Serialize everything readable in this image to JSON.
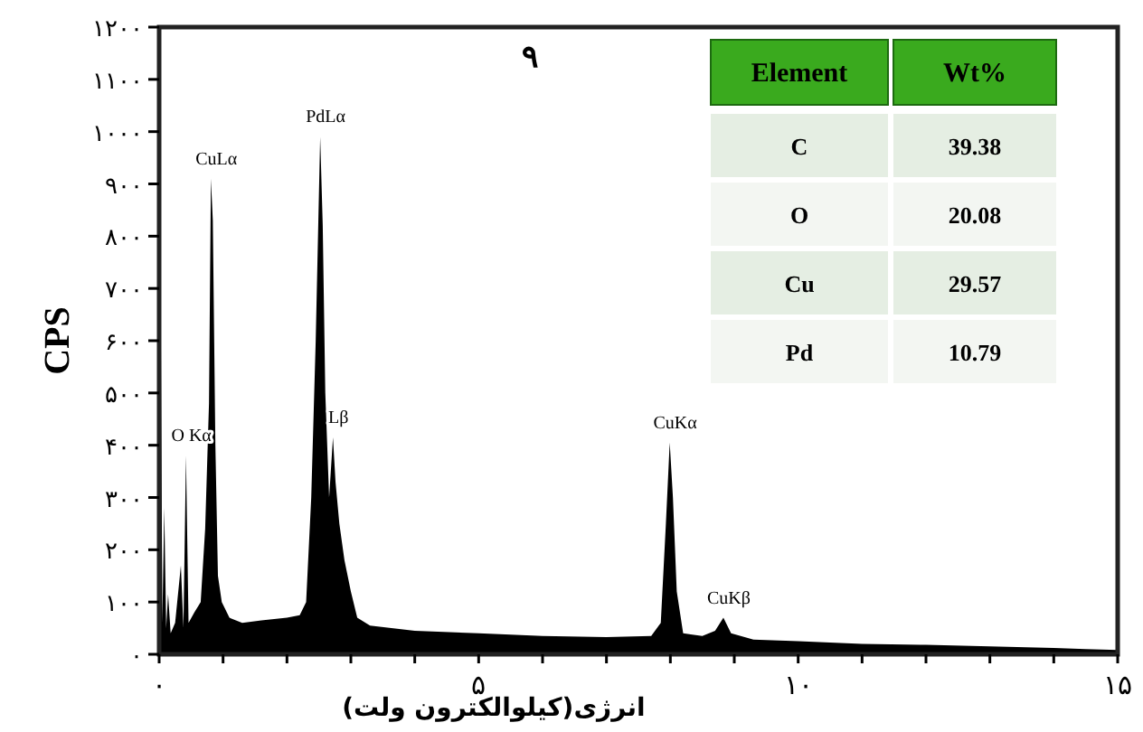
{
  "chart_data": {
    "type": "area",
    "title": "۹",
    "xlabel": "انرژی(کیلوالکترون ولت)",
    "ylabel": "CPS",
    "xlim": [
      0,
      15
    ],
    "ylim": [
      0,
      1200
    ],
    "xticks": [
      {
        "value": 0,
        "label": "۰"
      },
      {
        "value": 1,
        "label": null
      },
      {
        "value": 2,
        "label": null
      },
      {
        "value": 3,
        "label": null
      },
      {
        "value": 4,
        "label": null
      },
      {
        "value": 5,
        "label": "۵"
      },
      {
        "value": 6,
        "label": null
      },
      {
        "value": 7,
        "label": null
      },
      {
        "value": 8,
        "label": null
      },
      {
        "value": 9,
        "label": null
      },
      {
        "value": 10,
        "label": "۱۰"
      },
      {
        "value": 11,
        "label": null
      },
      {
        "value": 12,
        "label": null
      },
      {
        "value": 13,
        "label": null
      },
      {
        "value": 14,
        "label": null
      },
      {
        "value": 15,
        "label": "۱۵"
      }
    ],
    "yticks": [
      {
        "value": 0,
        "label": "۰"
      },
      {
        "value": 100,
        "label": "۱۰۰"
      },
      {
        "value": 200,
        "label": "۲۰۰"
      },
      {
        "value": 300,
        "label": "۳۰۰"
      },
      {
        "value": 400,
        "label": "۴۰۰"
      },
      {
        "value": 500,
        "label": "۵۰۰"
      },
      {
        "value": 600,
        "label": "۶۰۰"
      },
      {
        "value": 700,
        "label": "۷۰۰"
      },
      {
        "value": 800,
        "label": "۸۰۰"
      },
      {
        "value": 900,
        "label": "۹۰۰"
      },
      {
        "value": 1000,
        "label": "۱۰۰۰"
      },
      {
        "value": 1100,
        "label": "۱۱۰۰"
      },
      {
        "value": 1200,
        "label": "۱۲۰۰"
      }
    ],
    "series": [
      {
        "color": "#000000",
        "x": [
          0,
          0.02,
          0.05,
          0.08,
          0.11,
          0.14,
          0.18,
          0.25,
          0.34,
          0.38,
          0.42,
          0.46,
          0.55,
          0.65,
          0.72,
          0.78,
          0.81,
          0.84,
          0.88,
          0.92,
          0.98,
          1.1,
          1.3,
          1.6,
          2.0,
          2.2,
          2.3,
          2.38,
          2.45,
          2.52,
          2.56,
          2.6,
          2.66,
          2.72,
          2.76,
          2.82,
          2.9,
          3.0,
          3.1,
          3.3,
          4,
          5,
          6,
          7,
          7.7,
          7.85,
          7.93,
          7.99,
          8.04,
          8.1,
          8.2,
          8.5,
          8.7,
          8.83,
          8.95,
          9.3,
          10,
          11,
          12,
          13,
          14,
          14.5,
          15
        ],
        "values": [
          0,
          790,
          60,
          280,
          50,
          115,
          40,
          60,
          170,
          50,
          380,
          60,
          80,
          100,
          240,
          480,
          910,
          830,
          400,
          150,
          100,
          70,
          60,
          65,
          70,
          75,
          100,
          300,
          600,
          990,
          820,
          500,
          300,
          415,
          330,
          250,
          180,
          120,
          70,
          55,
          45,
          40,
          35,
          33,
          35,
          60,
          250,
          405,
          300,
          120,
          40,
          35,
          45,
          70,
          40,
          28,
          25,
          20,
          18,
          15,
          12,
          10,
          8
        ]
      }
    ],
    "annotations": [
      {
        "text": "CuLα",
        "x": 0.81,
        "y": 910
      },
      {
        "text": "PdLα",
        "x": 2.52,
        "y": 990
      },
      {
        "text": "O Kα",
        "x": 0.42,
        "y": 380
      },
      {
        "text": "Lβ",
        "x": 2.72,
        "y": 415
      },
      {
        "text": "CuKα",
        "x": 7.99,
        "y": 405
      },
      {
        "text": "CuKβ",
        "x": 8.83,
        "y": 70
      },
      "Element",
      "Wt%",
      "C",
      "39.38",
      "O",
      "20.08",
      "Cu",
      "29.57",
      "Pd",
      "10.79"
    ]
  }
}
